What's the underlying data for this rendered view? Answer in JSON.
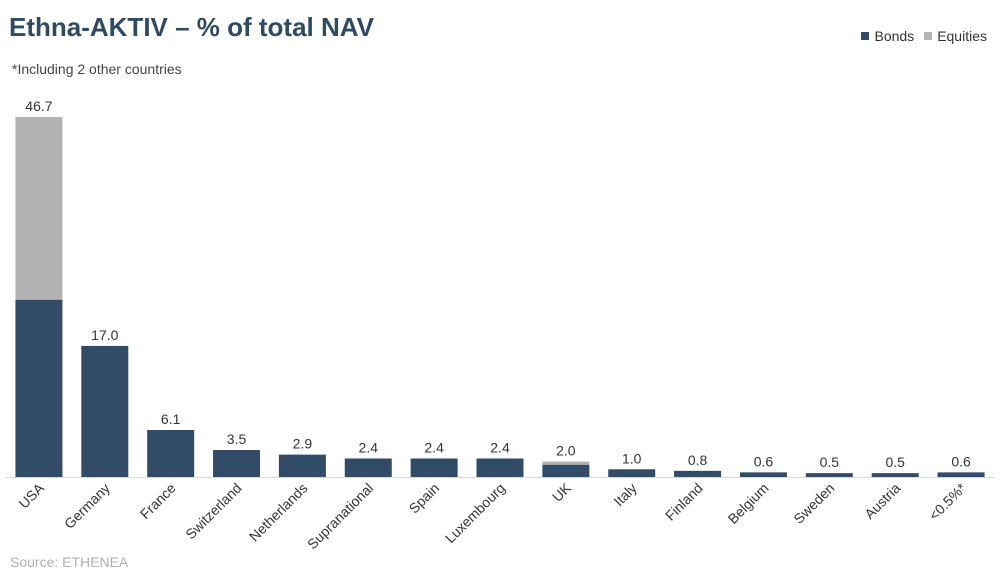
{
  "colors": {
    "bonds": "#324b66",
    "equities": "#b3b3b3",
    "axis": "#d9d9d9",
    "label_text": "#333333"
  },
  "source": "Source: ETHENEA",
  "chart_data": {
    "type": "bar",
    "stacked": true,
    "title": "Ethna-AKTIV – % of total NAV",
    "subtitle": "*Including 2 other countries",
    "xlabel": "",
    "ylabel": "",
    "ylim": [
      0,
      50
    ],
    "grid": false,
    "legend_position": "top-right",
    "categories": [
      "USA",
      "Germany",
      "France",
      "Switzerland",
      "Netherlands",
      "Supranational",
      "Spain",
      "Luxembourg",
      "UK",
      "Italy",
      "Finland",
      "Belgium",
      "Sweden",
      "Austria",
      "<0.5%*"
    ],
    "series": [
      {
        "name": "Bonds",
        "values": [
          23.0,
          17.0,
          6.1,
          3.5,
          2.9,
          2.4,
          2.4,
          2.4,
          1.6,
          1.0,
          0.8,
          0.6,
          0.5,
          0.5,
          0.6
        ]
      },
      {
        "name": "Equities",
        "values": [
          23.7,
          0,
          0,
          0,
          0,
          0,
          0,
          0,
          0.4,
          0,
          0,
          0,
          0,
          0,
          0
        ]
      }
    ],
    "totals": [
      "46.7",
      "17.0",
      "6.1",
      "3.5",
      "2.9",
      "2.4",
      "2.4",
      "2.4",
      "2.0",
      "1.0",
      "0.8",
      "0.6",
      "0.5",
      "0.5",
      "0.6"
    ]
  }
}
